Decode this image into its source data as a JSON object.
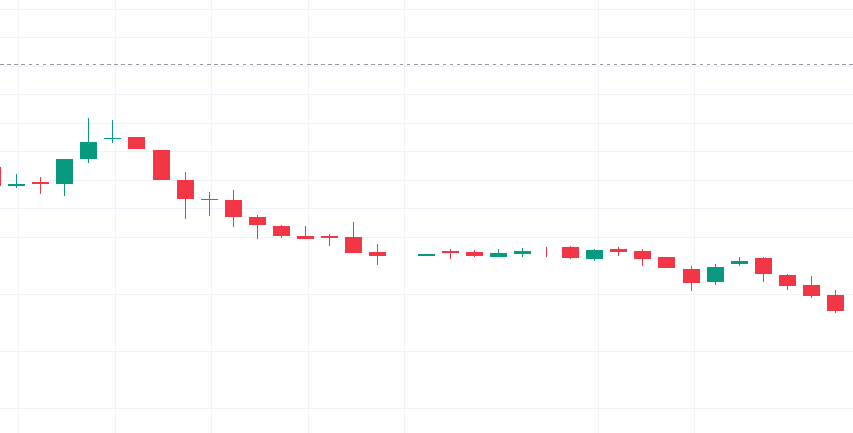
{
  "chart_data": {
    "type": "candlestick",
    "title": "",
    "xlabel": "",
    "ylabel": "",
    "ylim": [
      0,
      486
    ],
    "grid": true,
    "legend": "none",
    "colors": {
      "up": "#089981",
      "down": "#f23645",
      "grid": "#f0f3fa",
      "crosshair": "#9598a1",
      "background": "#ffffff"
    },
    "crosshair": {
      "x_index": 2.55,
      "y_value": 414.5
    },
    "candles": [
      {
        "o": 299,
        "h": 301,
        "l": 276,
        "c": 277
      },
      {
        "o": 277,
        "h": 291,
        "l": 275,
        "c": 279
      },
      {
        "o": 282,
        "h": 287,
        "l": 268,
        "c": 279
      },
      {
        "o": 279,
        "h": 308,
        "l": 266,
        "c": 308
      },
      {
        "o": 307,
        "h": 354,
        "l": 303,
        "c": 327
      },
      {
        "o": 330,
        "h": 351,
        "l": 326,
        "c": 331
      },
      {
        "o": 332,
        "h": 344,
        "l": 297,
        "c": 319
      },
      {
        "o": 318,
        "h": 330,
        "l": 276,
        "c": 284
      },
      {
        "o": 284,
        "h": 293,
        "l": 240,
        "c": 263
      },
      {
        "o": 263,
        "h": 271,
        "l": 244,
        "c": 262
      },
      {
        "o": 262,
        "h": 273,
        "l": 231,
        "c": 243
      },
      {
        "o": 243,
        "h": 245,
        "l": 218,
        "c": 233
      },
      {
        "o": 232,
        "h": 234,
        "l": 219,
        "c": 221
      },
      {
        "o": 221,
        "h": 232,
        "l": 218,
        "c": 218
      },
      {
        "o": 221,
        "h": 223,
        "l": 210,
        "c": 219
      },
      {
        "o": 220,
        "h": 237,
        "l": 202,
        "c": 202
      },
      {
        "o": 203,
        "h": 212,
        "l": 189,
        "c": 199
      },
      {
        "o": 198,
        "h": 202,
        "l": 191,
        "c": 197
      },
      {
        "o": 199,
        "h": 210,
        "l": 197,
        "c": 201
      },
      {
        "o": 204,
        "h": 206,
        "l": 195,
        "c": 202
      },
      {
        "o": 203,
        "h": 205,
        "l": 197,
        "c": 199
      },
      {
        "o": 198,
        "h": 206,
        "l": 197,
        "c": 202
      },
      {
        "o": 201,
        "h": 208,
        "l": 197,
        "c": 204
      },
      {
        "o": 207,
        "h": 209,
        "l": 197,
        "c": 206
      },
      {
        "o": 209,
        "h": 210,
        "l": 195,
        "c": 196
      },
      {
        "o": 195,
        "h": 206,
        "l": 193,
        "c": 205
      },
      {
        "o": 207,
        "h": 209,
        "l": 199,
        "c": 203
      },
      {
        "o": 204,
        "h": 206,
        "l": 187,
        "c": 195
      },
      {
        "o": 197,
        "h": 200,
        "l": 172,
        "c": 185
      },
      {
        "o": 184,
        "h": 187,
        "l": 159,
        "c": 168
      },
      {
        "o": 169,
        "h": 190,
        "l": 166,
        "c": 186
      },
      {
        "o": 190,
        "h": 197,
        "l": 187,
        "c": 193
      },
      {
        "o": 196,
        "h": 198,
        "l": 170,
        "c": 178
      },
      {
        "o": 177,
        "h": 178,
        "l": 160,
        "c": 165
      },
      {
        "o": 166,
        "h": 176,
        "l": 151,
        "c": 154
      },
      {
        "o": 155,
        "h": 160,
        "l": 135,
        "c": 137
      }
    ]
  }
}
